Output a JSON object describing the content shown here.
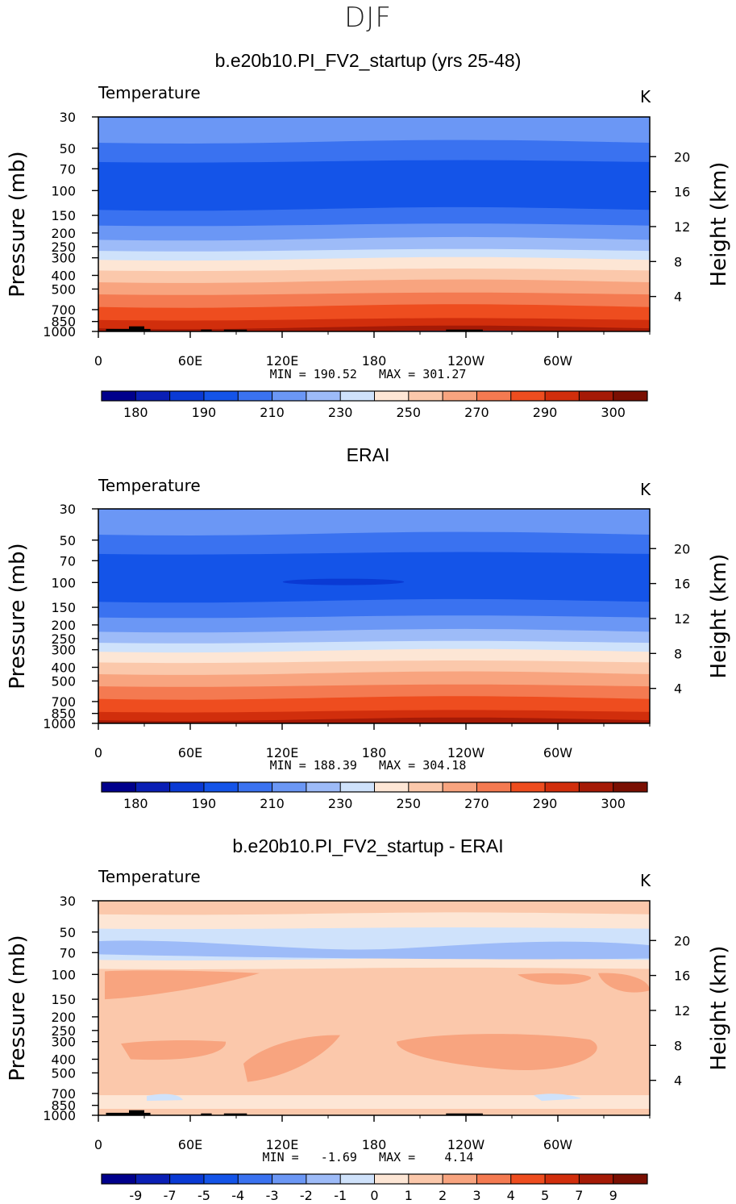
{
  "figure_title": "DJF",
  "chart_data": [
    {
      "type": "contour",
      "title": "b.e20b10.PI_FV2_startup (yrs 25-48)",
      "variable": "Temperature",
      "units": "K",
      "ylabel": "Pressure  (mb)",
      "ylabel_right": "Height  (km)",
      "x_ticks": [
        "0",
        "60E",
        "120E",
        "180",
        "120W",
        "60W"
      ],
      "x_tick_values": [
        0,
        60,
        120,
        180,
        240,
        300
      ],
      "xlim": [
        0,
        360
      ],
      "y_ticks": [
        "30",
        "50",
        "70",
        "100",
        "150",
        "200",
        "250",
        "300",
        "400",
        "500",
        "700",
        "850",
        "1000"
      ],
      "y_tick_values": [
        30,
        50,
        70,
        100,
        150,
        200,
        250,
        300,
        400,
        500,
        700,
        850,
        1000
      ],
      "ylim": [
        1000,
        30
      ],
      "y_scale": "log",
      "height_ticks": [
        "20",
        "16",
        "12",
        "8",
        "4"
      ],
      "height_tick_values": [
        20,
        16,
        12,
        8,
        4
      ],
      "min_max": "MIN = 190.52   MAX = 301.27",
      "min": 190.52,
      "max": 301.27,
      "colorbar_labels": [
        "180",
        "190",
        "210",
        "230",
        "250",
        "270",
        "290",
        "300"
      ],
      "contour_levels": [
        180,
        185,
        190,
        200,
        210,
        220,
        230,
        240,
        250,
        260,
        270,
        280,
        290,
        295,
        300
      ]
    },
    {
      "type": "contour",
      "title": "ERAI",
      "variable": "Temperature",
      "units": "K",
      "ylabel": "Pressure  (mb)",
      "ylabel_right": "Height  (km)",
      "x_ticks": [
        "0",
        "60E",
        "120E",
        "180",
        "120W",
        "60W"
      ],
      "x_tick_values": [
        0,
        60,
        120,
        180,
        240,
        300
      ],
      "xlim": [
        0,
        360
      ],
      "y_ticks": [
        "30",
        "50",
        "70",
        "100",
        "150",
        "200",
        "250",
        "300",
        "400",
        "500",
        "700",
        "850",
        "1000"
      ],
      "y_tick_values": [
        30,
        50,
        70,
        100,
        150,
        200,
        250,
        300,
        400,
        500,
        700,
        850,
        1000
      ],
      "ylim": [
        1000,
        30
      ],
      "y_scale": "log",
      "height_ticks": [
        "20",
        "16",
        "12",
        "8",
        "4"
      ],
      "height_tick_values": [
        20,
        16,
        12,
        8,
        4
      ],
      "min_max": "MIN = 188.39   MAX = 304.18",
      "min": 188.39,
      "max": 304.18,
      "colorbar_labels": [
        "180",
        "190",
        "210",
        "230",
        "250",
        "270",
        "290",
        "300"
      ],
      "contour_levels": [
        180,
        185,
        190,
        200,
        210,
        220,
        230,
        240,
        250,
        260,
        270,
        280,
        290,
        295,
        300
      ]
    },
    {
      "type": "contour",
      "title": "b.e20b10.PI_FV2_startup - ERAI",
      "variable": "Temperature",
      "units": "K",
      "ylabel": "Pressure  (mb)",
      "ylabel_right": "Height  (km)",
      "x_ticks": [
        "0",
        "60E",
        "120E",
        "180",
        "120W",
        "60W"
      ],
      "x_tick_values": [
        0,
        60,
        120,
        180,
        240,
        300
      ],
      "xlim": [
        0,
        360
      ],
      "y_ticks": [
        "30",
        "50",
        "70",
        "100",
        "150",
        "200",
        "250",
        "300",
        "400",
        "500",
        "700",
        "850",
        "1000"
      ],
      "y_tick_values": [
        30,
        50,
        70,
        100,
        150,
        200,
        250,
        300,
        400,
        500,
        700,
        850,
        1000
      ],
      "ylim": [
        1000,
        30
      ],
      "y_scale": "log",
      "height_ticks": [
        "20",
        "16",
        "12",
        "8",
        "4"
      ],
      "height_tick_values": [
        20,
        16,
        12,
        8,
        4
      ],
      "min_max": "MIN =   -1.69   MAX =    4.14",
      "min": -1.69,
      "max": 4.14,
      "colorbar_labels": [
        "-9",
        "-7",
        "-5",
        "-4",
        "-3",
        "-2",
        "-1",
        "0",
        "1",
        "2",
        "3",
        "4",
        "5",
        "7",
        "9"
      ],
      "contour_levels": [
        -9,
        -7,
        -5,
        -4,
        -3,
        -2,
        -1,
        0,
        1,
        2,
        3,
        4,
        5,
        7,
        9
      ]
    }
  ],
  "colors": {
    "palette": [
      "#00008c",
      "#0a1fb5",
      "#0a3ad4",
      "#1454e8",
      "#3a72f0",
      "#6b97f5",
      "#9dbbf8",
      "#cfe2fb",
      "#fde6d5",
      "#fbc8ab",
      "#f8a47f",
      "#f47a51",
      "#ee4d1f",
      "#d12e0c",
      "#a51a06",
      "#7a0f02"
    ],
    "terrain": "#000000"
  }
}
